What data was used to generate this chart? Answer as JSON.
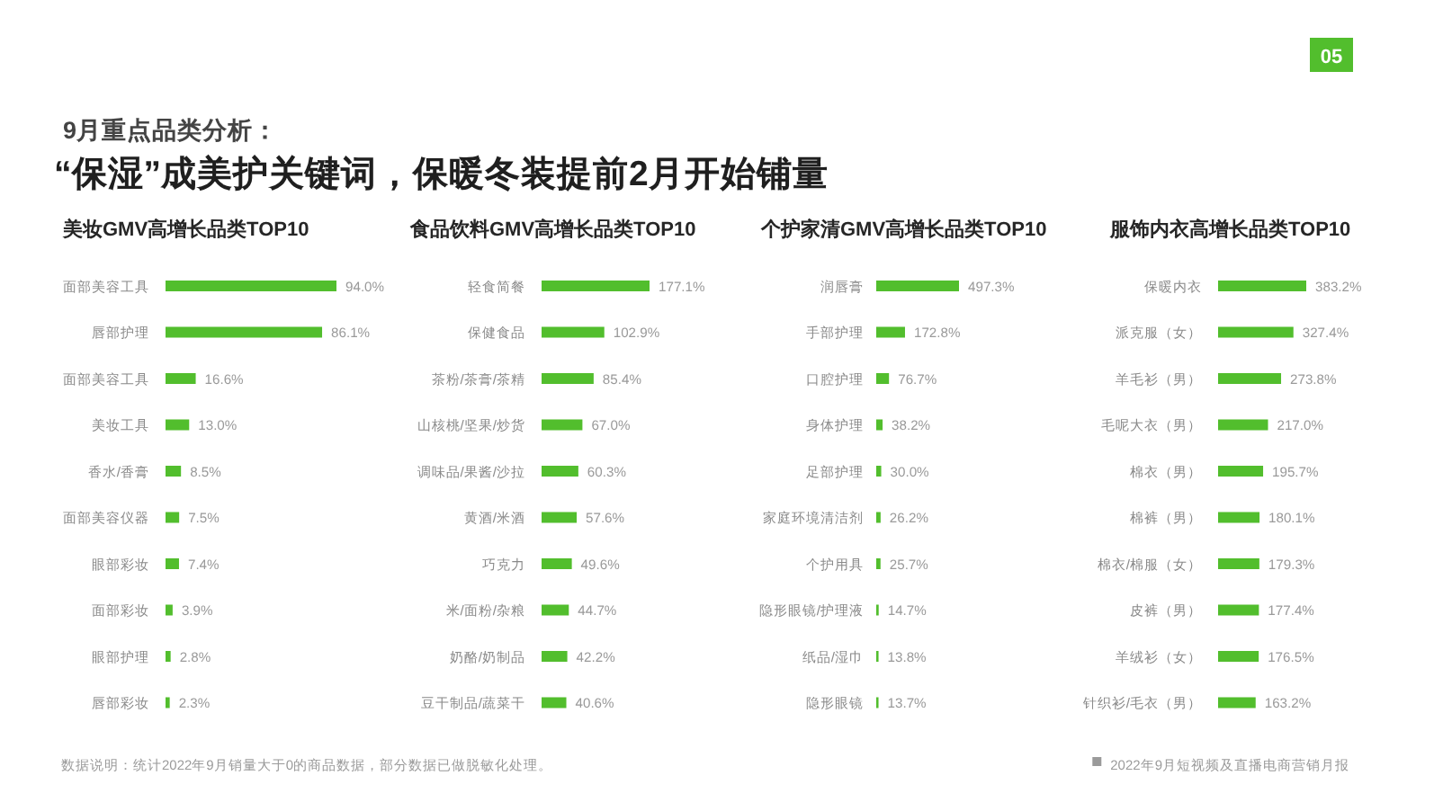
{
  "chart_data": [
    {
      "type": "other",
      "subtitle": "9月重点品类分析：",
      "title": "“保湿”成美护关键词，保暖冬装提前2月开始铺量",
      "annotations": [
        "05",
        "数据说明：统计2022年9月销量大于0的商品数据，部分数据已做脱敏化处理。",
        "2022年9月短视频及直播电商营销月报"
      ]
    },
    {
      "type": "bar",
      "orientation": "horizontal",
      "title": "美妆GMV高增长品类TOP10",
      "color": "#52be2d",
      "categories": [
        "面部美容工具",
        "唇部护理",
        "面部美容工具",
        "美妆工具",
        "香水/香膏",
        "面部美容仪器",
        "眼部彩妆",
        "面部彩妆",
        "眼部护理",
        "唇部彩妆"
      ],
      "values": [
        94.0,
        86.1,
        16.6,
        13.0,
        8.5,
        7.5,
        7.4,
        3.9,
        2.8,
        2.3
      ],
      "value_labels": [
        "94.0%",
        "86.1%",
        "16.6%",
        "13.0%",
        "8.5%",
        "7.5%",
        "7.4%",
        "3.9%",
        "2.8%",
        "2.3%"
      ]
    },
    {
      "type": "bar",
      "orientation": "horizontal",
      "title": "食品饮料GMV高增长品类TOP10",
      "color": "#52be2d",
      "categories": [
        "轻食简餐",
        "保健食品",
        "茶粉/茶膏/茶精",
        "山核桃/坚果/炒货",
        "调味品/果酱/沙拉",
        "黄酒/米酒",
        "巧克力",
        "米/面粉/杂粮",
        "奶酪/奶制品",
        "豆干制品/蔬菜干"
      ],
      "values": [
        177.1,
        102.9,
        85.4,
        67.0,
        60.3,
        57.6,
        49.6,
        44.7,
        42.2,
        40.6
      ],
      "value_labels": [
        "177.1%",
        "102.9%",
        "85.4%",
        "67.0%",
        "60.3%",
        "57.6%",
        "49.6%",
        "44.7%",
        "42.2%",
        "40.6%"
      ]
    },
    {
      "type": "bar",
      "orientation": "horizontal",
      "title": "个护家清GMV高增长品类TOP10",
      "color": "#52be2d",
      "categories": [
        "润唇膏",
        "手部护理",
        "口腔护理",
        "身体护理",
        "足部护理",
        "家庭环境清洁剂",
        "个护用具",
        "隐形眼镜/护理液",
        "纸品/湿巾",
        "隐形眼镜"
      ],
      "values": [
        497.3,
        172.8,
        76.7,
        38.2,
        30.0,
        26.2,
        25.7,
        14.7,
        13.8,
        13.7
      ],
      "value_labels": [
        "497.3%",
        "172.8%",
        "76.7%",
        "38.2%",
        "30.0%",
        "26.2%",
        "25.7%",
        "14.7%",
        "13.8%",
        "13.7%"
      ]
    },
    {
      "type": "bar",
      "orientation": "horizontal",
      "title": "服饰内衣高增长品类TOP10",
      "color": "#52be2d",
      "categories": [
        "保暖内衣",
        "派克服（女）",
        "羊毛衫（男）",
        "毛呢大衣（男）",
        "棉衣（男）",
        "棉裤（男）",
        "棉衣/棉服（女）",
        "皮裤（男）",
        "羊绒衫（女）",
        "针织衫/毛衣（男）"
      ],
      "values": [
        383.2,
        327.4,
        273.8,
        217.0,
        195.7,
        180.1,
        179.3,
        177.4,
        176.5,
        163.2
      ],
      "value_labels": [
        "383.2%",
        "327.4%",
        "273.8%",
        "217.0%",
        "195.7%",
        "180.1%",
        "179.3%",
        "177.4%",
        "176.5%",
        "163.2%"
      ]
    }
  ]
}
